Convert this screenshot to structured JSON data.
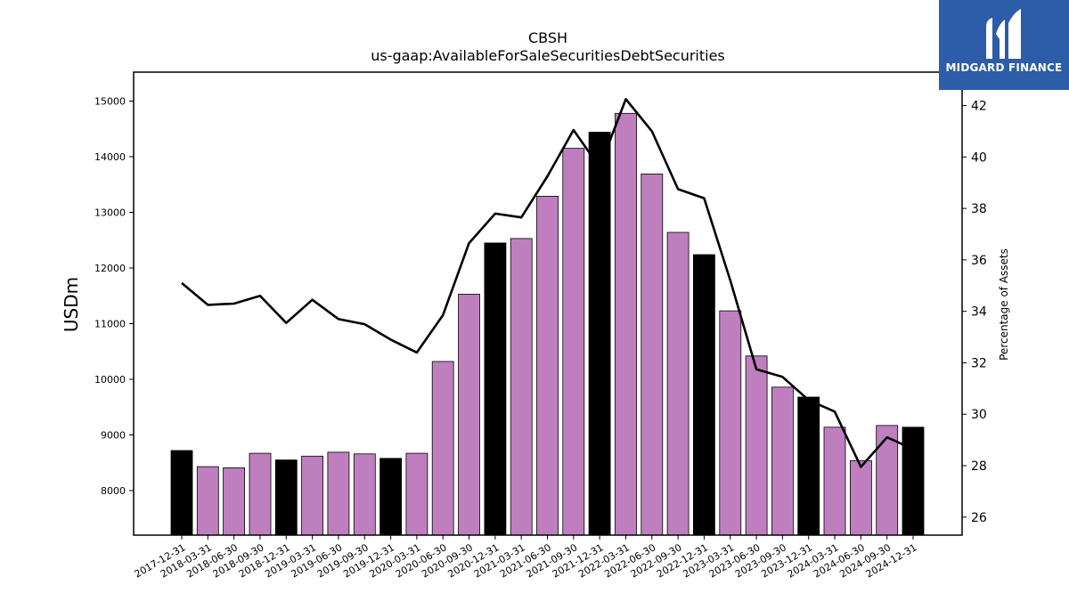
{
  "brand": {
    "name": "MIDGARD FINANCE",
    "bg_color": "#2d5ca8"
  },
  "colors": {
    "bar_regular": "#bf7fbf",
    "bar_year_end": "#000000",
    "line": "#000000"
  },
  "chart_data": {
    "type": "bar",
    "title": "CBSH",
    "subtitle": "us-gaap:AvailableForSaleSecuritiesDebtSecurities",
    "ylabel": "USDm",
    "y2label": "Percentage of Assets",
    "ylim": [
      7200,
      15520
    ],
    "y2lim": [
      25.3,
      43.3
    ],
    "yticks": [
      8000,
      9000,
      10000,
      11000,
      12000,
      13000,
      14000,
      15000
    ],
    "y2ticks": [
      26,
      28,
      30,
      32,
      34,
      36,
      38,
      40,
      42
    ],
    "categories": [
      "2017-12-31",
      "2018-03-31",
      "2018-06-30",
      "2018-09-30",
      "2018-12-31",
      "2019-03-31",
      "2019-06-30",
      "2019-09-30",
      "2019-12-31",
      "2020-03-31",
      "2020-06-30",
      "2020-09-30",
      "2020-12-31",
      "2021-03-31",
      "2021-06-30",
      "2021-09-30",
      "2021-12-31",
      "2022-03-31",
      "2022-06-30",
      "2022-09-30",
      "2022-12-31",
      "2023-03-31",
      "2023-06-30",
      "2023-09-30",
      "2023-12-31",
      "2024-03-31",
      "2024-06-30",
      "2024-09-30",
      "2024-12-31"
    ],
    "series": [
      {
        "values": [
          8720,
          8430,
          8410,
          8670,
          8550,
          8620,
          8690,
          8660,
          8580,
          8670,
          10320,
          11530,
          12450,
          12530,
          13290,
          14150,
          14440,
          14780,
          13690,
          12640,
          12240,
          11230,
          10420,
          9860,
          9680,
          9140,
          8540,
          9170,
          9140
        ]
      },
      {
        "axis": "right",
        "type": "line",
        "values": [
          35.1,
          34.25,
          34.3,
          34.6,
          33.55,
          34.45,
          33.7,
          33.5,
          32.9,
          32.4,
          33.85,
          36.65,
          37.8,
          37.65,
          39.25,
          41.05,
          39.6,
          42.25,
          41.0,
          38.75,
          38.4,
          35.2,
          31.75,
          31.45,
          30.55,
          30.1,
          27.95,
          29.1,
          28.65
        ]
      }
    ],
    "grid": false,
    "legend": "none"
  }
}
